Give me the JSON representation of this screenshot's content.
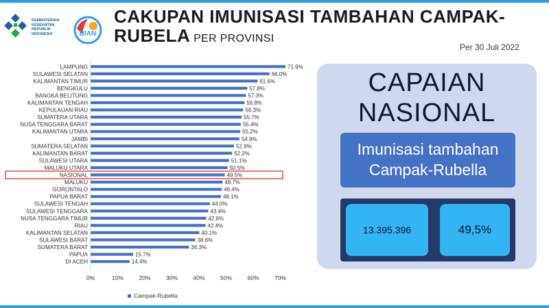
{
  "header": {
    "title_line1": "CAKUPAN IMUNISASI TAMBAHAN CAMPAK-",
    "title_line2": "RUBELA",
    "title_suffix": " PER PROVINSI",
    "date": "Per 30 Juli 2022",
    "logo_text": "KEMENTERIAN KESEHATAN REPUBLIK INDONESIA",
    "bian_logo_text": "BIAN"
  },
  "chart_data": {
    "type": "bar",
    "orientation": "horizontal",
    "categories": [
      "LAMPUNG",
      "SULAWESI SELATAN",
      "KALIMANTAN TIMUR",
      "BENGKULU",
      "BANGKA BELITUNG",
      "KALIMANTAN TENGAH",
      "KEPULAUAN RIAU",
      "SUMATERA UTARA",
      "NUSA TENGGARA BARAT",
      "KALIMANTAN UTARA",
      "JAMBI",
      "SUMATERA SELATAN",
      "KALIMANTAN BARAT",
      "SULAWESI UTARA",
      "MALUKU UTARA",
      "NASIONAL",
      "MALUKU",
      "GORONTALO",
      "PAPUA BARAT",
      "SULAWESI TENGAH",
      "SULAWESI TENGGARA",
      "NUSA TENGGARA TIMUR",
      "RIAU",
      "KALIMANTAN SELATAN",
      "SULAWESI BARAT",
      "SUMATERA BARAT",
      "PAPUA",
      "DI ACEH"
    ],
    "series": [
      {
        "name": "Campak-Rubella",
        "values": [
          71.9,
          66.0,
          61.6,
          57.8,
          57.3,
          56.8,
          56.3,
          55.7,
          55.4,
          55.2,
          54.9,
          52.9,
          52.2,
          51.1,
          50.5,
          49.5,
          48.7,
          48.4,
          48.1,
          44.0,
          43.4,
          42.6,
          42.4,
          40.1,
          38.6,
          36.3,
          15.7,
          14.4
        ]
      }
    ],
    "data_labels": [
      "71.9%",
      "66.0%",
      "61.6%",
      "57.8%",
      "57.3%",
      "56.8%",
      "56.3%",
      "55.7%",
      "55.4%",
      "55.2%",
      "54.9%",
      "52.9%",
      "52.2%",
      "51.1%",
      "50.5%",
      "49.5%",
      "48.7%",
      "48.4%",
      "48.1%",
      "44.0%",
      "43.4%",
      "42.6%",
      "42.4%",
      "40.1%",
      "38.6%",
      "36.3%",
      "15.7%",
      "14.4%"
    ],
    "highlighted_category": "NASIONAL",
    "xlim": [
      0,
      70
    ],
    "xticks": [
      0,
      10,
      20,
      30,
      40,
      50,
      60,
      70
    ],
    "xtick_labels": [
      "0%",
      "10%",
      "20%",
      "30%",
      "40%",
      "50%",
      "60%",
      "70%"
    ],
    "legend_position": "bottom-left",
    "grid": false,
    "colors": {
      "bar": "#4472c4",
      "highlight": "#e03b3b"
    }
  },
  "panel": {
    "title_line1": "CAPAIAN",
    "title_line2": "NASIONAL",
    "box_line1": "Imunisasi tambahan",
    "box_line2": "Campak-Rubella",
    "stat_count": "13.395.396",
    "stat_percent": "49,5%"
  }
}
